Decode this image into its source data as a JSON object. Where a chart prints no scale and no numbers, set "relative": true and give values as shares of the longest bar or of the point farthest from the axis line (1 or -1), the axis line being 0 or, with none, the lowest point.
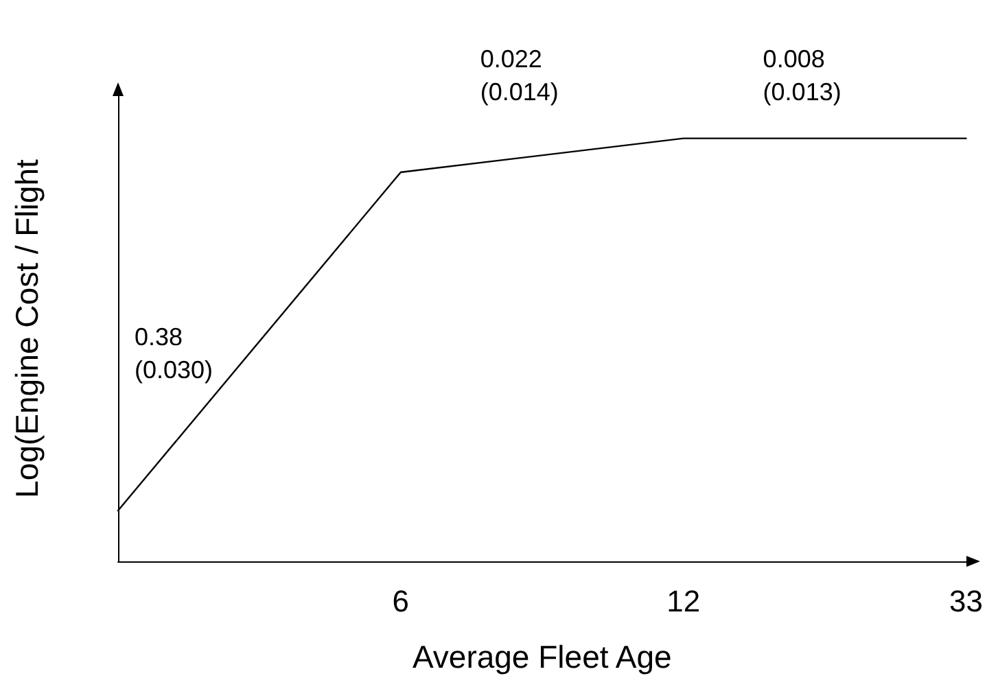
{
  "chart_data": {
    "type": "line",
    "relative": true,
    "xlabel": "Average Fleet Age",
    "ylabel": "Log(Engine Cost / Flight",
    "categories": [
      null,
      "6",
      "12",
      "33"
    ],
    "values": [
      0.12,
      0.92,
      1,
      1
    ],
    "color": "#000000",
    "marker": "none",
    "grid": false,
    "tick_labels": "x",
    "annotations": [
      "0.38\n(0.030)",
      "0.022\n(0.014)",
      "0.008\n(0.013)"
    ]
  }
}
